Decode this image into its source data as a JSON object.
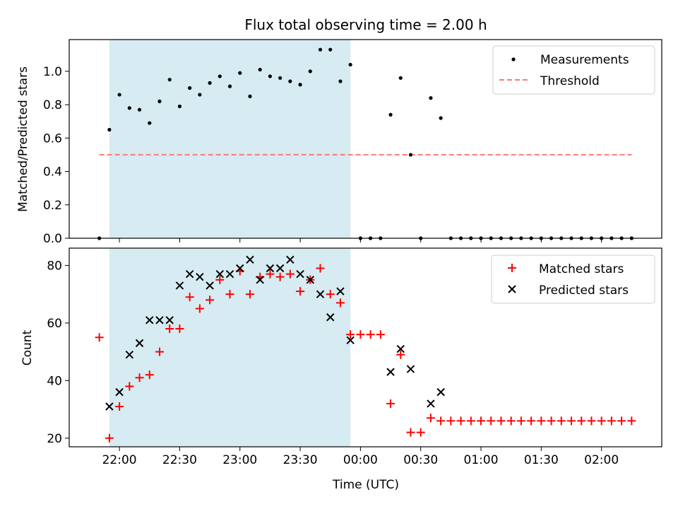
{
  "chart_data": [
    {
      "type": "scatter",
      "title": "Flux total observing time = 2.00 h",
      "ylabel": "Matched/Predicted stars",
      "xlabel": "",
      "ylim": [
        0,
        1.19
      ],
      "yticks": [
        "0.0",
        "0.2",
        "0.4",
        "0.6",
        "0.8",
        "1.0"
      ],
      "ytick_values": [
        0,
        0.2,
        0.4,
        0.6,
        0.8,
        1.0
      ],
      "shaded_interval": [
        "21:55",
        "23:55"
      ],
      "threshold": {
        "name": "Threshold",
        "value": 0.5,
        "x_range": [
          "21:50",
          "02:15"
        ],
        "color": "#ff7777"
      },
      "legend_position": "top-right",
      "series": [
        {
          "name": "Measurements",
          "marker": "dot",
          "color": "#000000",
          "x": [
            "21:50",
            "21:55",
            "22:00",
            "22:05",
            "22:10",
            "22:15",
            "22:20",
            "22:25",
            "22:30",
            "22:35",
            "22:40",
            "22:45",
            "22:50",
            "22:55",
            "23:00",
            "23:05",
            "23:10",
            "23:15",
            "23:20",
            "23:25",
            "23:30",
            "23:35",
            "23:40",
            "23:45",
            "23:50",
            "23:55",
            "00:00",
            "00:05",
            "00:10",
            "00:15",
            "00:20",
            "00:25",
            "00:30",
            "00:35",
            "00:40",
            "00:45",
            "00:50",
            "00:55",
            "01:00",
            "01:05",
            "01:10",
            "01:15",
            "01:20",
            "01:25",
            "01:30",
            "01:35",
            "01:40",
            "01:45",
            "01:50",
            "01:55",
            "02:00",
            "02:05",
            "02:10",
            "02:15"
          ],
          "y": [
            0.0,
            0.65,
            0.86,
            0.78,
            0.77,
            0.69,
            0.82,
            0.95,
            0.79,
            0.9,
            0.86,
            0.93,
            0.97,
            0.91,
            0.99,
            0.85,
            1.01,
            0.97,
            0.96,
            0.94,
            0.92,
            1.0,
            1.13,
            1.13,
            0.94,
            1.04,
            0.0,
            0.0,
            0.0,
            0.74,
            0.96,
            0.5,
            0.0,
            0.84,
            0.72,
            0.0,
            0.0,
            0.0,
            0.0,
            0.0,
            0.0,
            0.0,
            0.0,
            0.0,
            0.0,
            0.0,
            0.0,
            0.0,
            0.0,
            0.0,
            0.0,
            0.0,
            0.0,
            0.0
          ]
        }
      ]
    },
    {
      "type": "scatter",
      "title": "",
      "ylabel": "Count",
      "xlabel": "Time (UTC)",
      "ylim": [
        17,
        86
      ],
      "yticks": [
        "20",
        "40",
        "60",
        "80"
      ],
      "ytick_values": [
        20,
        40,
        60,
        80
      ],
      "xlim": [
        "21:35",
        "02:30"
      ],
      "xticks": [
        "22:00",
        "22:30",
        "23:00",
        "23:30",
        "00:00",
        "00:30",
        "01:00",
        "01:30",
        "02:00"
      ],
      "shaded_interval": [
        "21:55",
        "23:55"
      ],
      "legend_position": "top-right",
      "series": [
        {
          "name": "Matched stars",
          "marker": "plus",
          "color": "#ff0000",
          "x": [
            "21:50",
            "21:55",
            "22:00",
            "22:05",
            "22:10",
            "22:15",
            "22:20",
            "22:25",
            "22:30",
            "22:35",
            "22:40",
            "22:45",
            "22:50",
            "22:55",
            "23:00",
            "23:05",
            "23:10",
            "23:15",
            "23:20",
            "23:25",
            "23:30",
            "23:35",
            "23:40",
            "23:45",
            "23:50",
            "23:55",
            "00:00",
            "00:05",
            "00:10",
            "00:15",
            "00:20",
            "00:25",
            "00:30",
            "00:35",
            "00:40",
            "00:45",
            "00:50",
            "00:55",
            "01:00",
            "01:05",
            "01:10",
            "01:15",
            "01:20",
            "01:25",
            "01:30",
            "01:35",
            "01:40",
            "01:45",
            "01:50",
            "01:55",
            "02:00",
            "02:05",
            "02:10",
            "02:15"
          ],
          "y": [
            55,
            20,
            31,
            38,
            41,
            42,
            50,
            58,
            58,
            69,
            65,
            68,
            75,
            70,
            78,
            70,
            76,
            77,
            76,
            77,
            71,
            75,
            79,
            70,
            67,
            56,
            56,
            56,
            56,
            32,
            49,
            22,
            22,
            27,
            26,
            26,
            26,
            26,
            26,
            26,
            26,
            26,
            26,
            26,
            26,
            26,
            26,
            26,
            26,
            26,
            26,
            26,
            26,
            26
          ]
        },
        {
          "name": "Predicted stars",
          "marker": "x",
          "color": "#000000",
          "x": [
            "21:55",
            "22:00",
            "22:05",
            "22:10",
            "22:15",
            "22:20",
            "22:25",
            "22:30",
            "22:35",
            "22:40",
            "22:45",
            "22:50",
            "22:55",
            "23:00",
            "23:05",
            "23:10",
            "23:15",
            "23:20",
            "23:25",
            "23:30",
            "23:35",
            "23:40",
            "23:45",
            "23:50",
            "23:55",
            "00:15",
            "00:20",
            "00:25",
            "00:35",
            "00:40"
          ],
          "y": [
            31,
            36,
            49,
            53,
            61,
            61,
            61,
            73,
            77,
            76,
            73,
            77,
            77,
            79,
            82,
            75,
            79,
            79,
            82,
            77,
            75,
            70,
            62,
            71,
            54,
            43,
            51,
            44,
            32,
            36
          ]
        }
      ]
    }
  ]
}
